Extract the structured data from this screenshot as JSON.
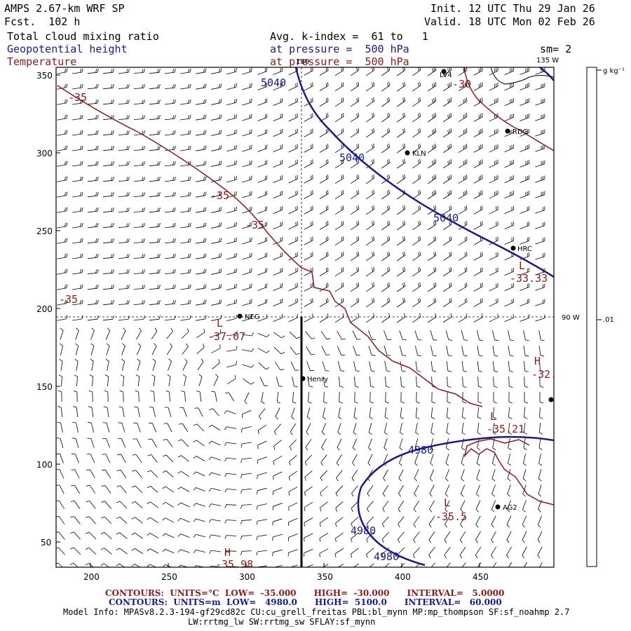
{
  "header": {
    "model": "AMPS 2.67-km WRF SP",
    "fcst": "Fcst.  102 h",
    "init": "Init. 12 UTC Thu 29 Jan 26",
    "valid": "Valid. 18 UTC Mon 02 Feb 26",
    "field1": "Total cloud mixing ratio",
    "field2": "Geopotential height",
    "field3": "Temperature",
    "avg": "Avg. k-index =  61 to   1",
    "pres1": "at pressure =  500 hPa",
    "pres2": "at pressure =  500 hPa",
    "sm": "sm= 2"
  },
  "axes": {
    "x_ticks": [
      "200",
      "250",
      "300",
      "350",
      "400",
      "450"
    ],
    "y_ticks": [
      "350",
      "300",
      "250",
      "200",
      "150",
      "100",
      "50"
    ],
    "meridian_top": "180",
    "meridian_right_top": "135 W",
    "meridian_right_mid": "90 W"
  },
  "colorbar": {
    "units": "g kg⁻¹",
    "tick": ".01"
  },
  "stations": [
    {
      "name": "LV4"
    },
    {
      "name": "RDG"
    },
    {
      "name": "KLN"
    },
    {
      "name": "HRC"
    },
    {
      "name": "NEG"
    },
    {
      "name": "Henry"
    },
    {
      "name": "AG2"
    },
    {
      "name": ""
    }
  ],
  "height_labels": [
    "5040",
    "5040",
    "5040",
    "4980",
    "4980",
    "4980"
  ],
  "temp_labels": [
    "-35",
    "-30",
    "-35",
    "-35",
    "-35",
    "-33.33",
    "-37.07",
    "-32.",
    "-35.21",
    "-35.5",
    "-35.98"
  ],
  "hl_markers": [
    "L",
    "L",
    "H",
    "L",
    "L",
    "H"
  ],
  "footer": {
    "red_line": "CONTOURS:  UNITS=°C  LOW=  -35.000      HIGH=  -30.000      INTERVAL=   5.0000",
    "blue_line": "CONTOURS:  UNITS=m  LOW=   4980.0      HIGH=  5100.0      INTERVAL=   60.000",
    "model_info": "Model Info: MPASv8.2.3-194-gf29cd82c CU:cu_grell_freitas PBL:bl_mynn MP:mp_thompson SF:sf_noahmp 2.7",
    "model_info2": "LW:rrtmg_lw SW:rrtmg_sw SFLAY:sf_mynn"
  },
  "colors": {
    "height": "#1a1a8c",
    "temperature": "#8b1a1a",
    "text": "#000000"
  }
}
